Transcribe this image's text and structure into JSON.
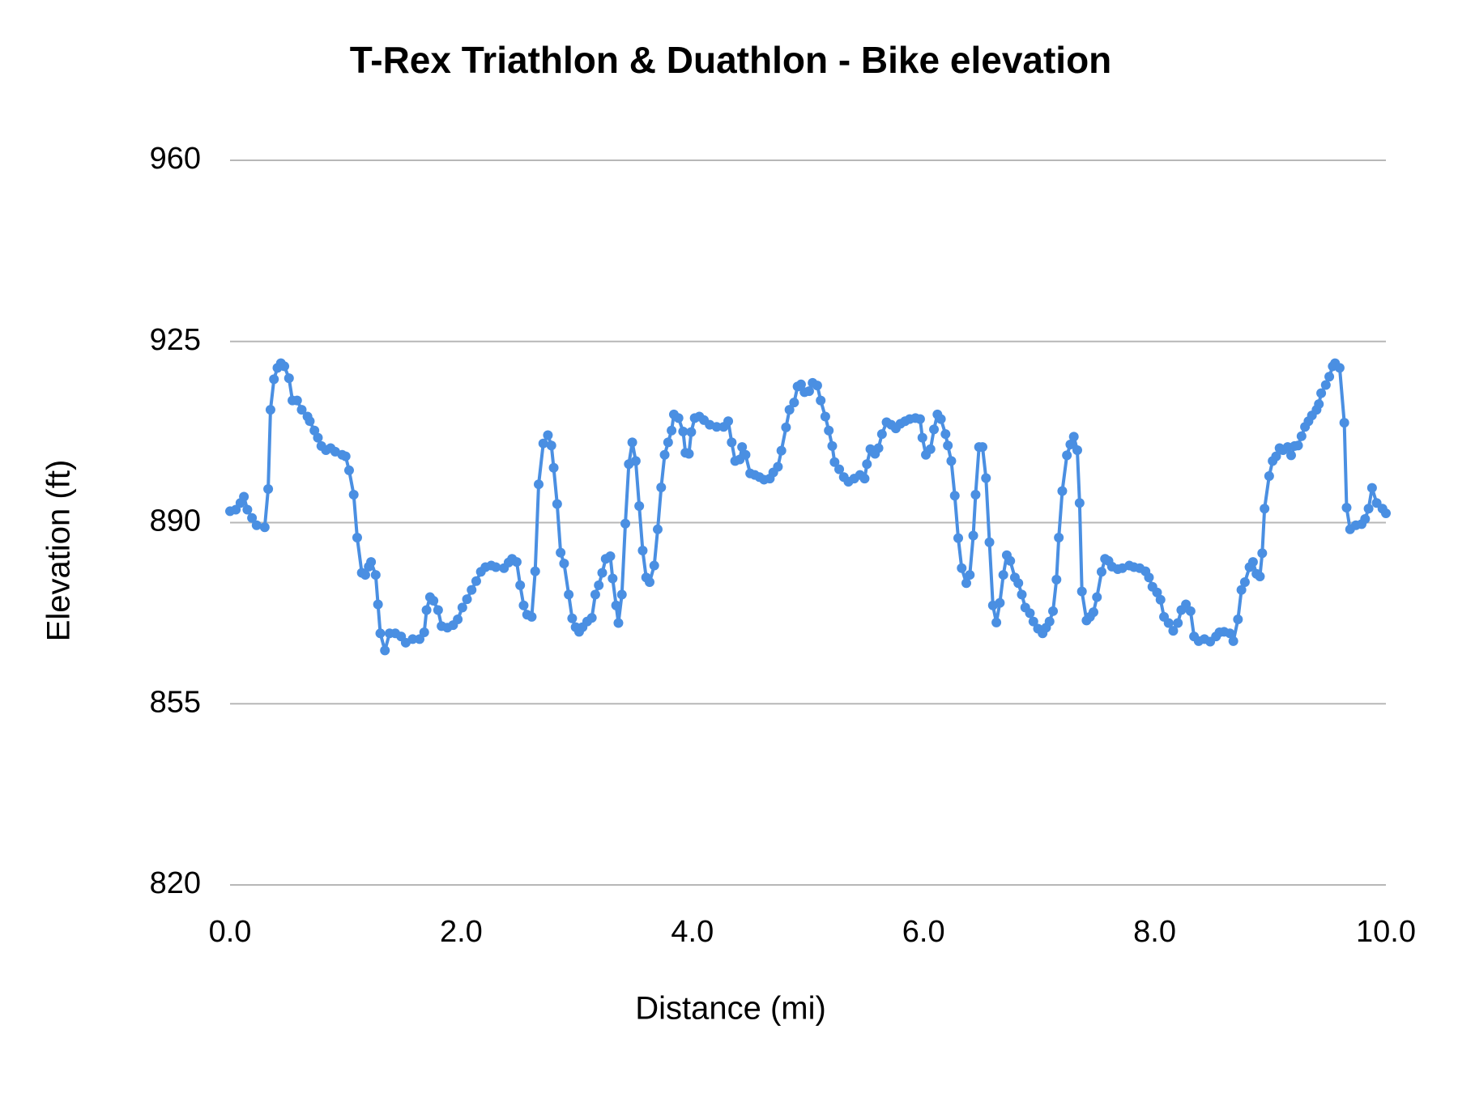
{
  "chart_data": {
    "type": "line",
    "title": "T-Rex Triathlon & Duathlon - Bike elevation",
    "x_label": "Distance (mi)",
    "y_label": "Elevation (ft)",
    "color": "#4a8fe2",
    "grid": true,
    "xlim": [
      0,
      10
    ],
    "ylim": [
      820,
      960
    ],
    "xticks": [
      {
        "value": 0,
        "label": "0.0"
      },
      {
        "value": 2,
        "label": "2.0"
      },
      {
        "value": 4,
        "label": "4.0"
      },
      {
        "value": 6,
        "label": "6.0"
      },
      {
        "value": 8,
        "label": "8.0"
      },
      {
        "value": 10,
        "label": "10.0"
      }
    ],
    "yticks": [
      820,
      855,
      890,
      925,
      960
    ],
    "x": [
      0.0,
      0.05,
      0.09,
      0.12,
      0.15,
      0.19,
      0.23,
      0.3,
      0.33,
      0.35,
      0.38,
      0.41,
      0.44,
      0.47,
      0.51,
      0.54,
      0.58,
      0.62,
      0.67,
      0.69,
      0.73,
      0.76,
      0.79,
      0.83,
      0.87,
      0.91,
      0.97,
      1.0,
      1.03,
      1.07,
      1.1,
      1.14,
      1.17,
      1.2,
      1.22,
      1.26,
      1.28,
      1.3,
      1.34,
      1.38,
      1.43,
      1.48,
      1.52,
      1.58,
      1.64,
      1.68,
      1.7,
      1.73,
      1.76,
      1.8,
      1.83,
      1.88,
      1.93,
      1.97,
      2.01,
      2.05,
      2.09,
      2.13,
      2.17,
      2.21,
      2.26,
      2.3,
      2.37,
      2.41,
      2.44,
      2.48,
      2.51,
      2.54,
      2.57,
      2.61,
      2.64,
      2.67,
      2.71,
      2.75,
      2.78,
      2.8,
      2.83,
      2.86,
      2.89,
      2.93,
      2.96,
      2.99,
      3.02,
      3.05,
      3.09,
      3.13,
      3.16,
      3.19,
      3.22,
      3.25,
      3.29,
      3.31,
      3.34,
      3.36,
      3.39,
      3.42,
      3.45,
      3.48,
      3.51,
      3.54,
      3.57,
      3.6,
      3.63,
      3.67,
      3.7,
      3.73,
      3.76,
      3.79,
      3.82,
      3.84,
      3.88,
      3.92,
      3.94,
      3.97,
      3.99,
      4.02,
      4.06,
      4.1,
      4.15,
      4.21,
      4.27,
      4.31,
      4.34,
      4.37,
      4.41,
      4.43,
      4.46,
      4.5,
      4.54,
      4.58,
      4.62,
      4.67,
      4.7,
      4.74,
      4.77,
      4.81,
      4.84,
      4.88,
      4.91,
      4.94,
      4.97,
      5.01,
      5.04,
      5.08,
      5.11,
      5.15,
      5.18,
      5.21,
      5.23,
      5.27,
      5.31,
      5.35,
      5.4,
      5.45,
      5.49,
      5.51,
      5.54,
      5.58,
      5.61,
      5.64,
      5.68,
      5.72,
      5.76,
      5.8,
      5.84,
      5.88,
      5.93,
      5.97,
      5.99,
      6.02,
      6.06,
      6.09,
      6.12,
      6.15,
      6.19,
      6.21,
      6.24,
      6.27,
      6.3,
      6.33,
      6.37,
      6.4,
      6.43,
      6.45,
      6.48,
      6.51,
      6.54,
      6.57,
      6.6,
      6.63,
      6.66,
      6.69,
      6.72,
      6.75,
      6.79,
      6.82,
      6.85,
      6.88,
      6.92,
      6.95,
      6.99,
      7.03,
      7.06,
      7.09,
      7.12,
      7.15,
      7.17,
      7.2,
      7.24,
      7.27,
      7.3,
      7.33,
      7.35,
      7.37,
      7.41,
      7.44,
      7.47,
      7.5,
      7.54,
      7.57,
      7.6,
      7.63,
      7.68,
      7.72,
      7.78,
      7.82,
      7.87,
      7.92,
      7.95,
      7.98,
      8.02,
      8.05,
      8.08,
      8.12,
      8.16,
      8.2,
      8.23,
      8.27,
      8.31,
      8.34,
      8.38,
      8.43,
      8.48,
      8.53,
      8.56,
      8.6,
      8.65,
      8.68,
      8.72,
      8.75,
      8.78,
      8.82,
      8.85,
      8.88,
      8.91,
      8.93,
      8.95,
      8.99,
      9.02,
      9.05,
      9.08,
      9.11,
      9.15,
      9.18,
      9.21,
      9.24,
      9.27,
      9.3,
      9.33,
      9.36,
      9.4,
      9.42,
      9.44,
      9.48,
      9.51,
      9.54,
      9.56,
      9.6,
      9.64,
      9.66,
      9.69,
      9.74,
      9.79,
      9.82,
      9.85,
      9.88,
      9.92,
      9.97,
      10.0
    ],
    "values": [
      892.2,
      892.5,
      893.8,
      895.0,
      892.5,
      890.9,
      889.5,
      889.1,
      896.5,
      911.8,
      917.7,
      919.9,
      920.8,
      920.2,
      917.9,
      913.6,
      913.6,
      911.8,
      910.5,
      909.6,
      907.8,
      906.4,
      904.8,
      904.0,
      904.4,
      903.7,
      903.1,
      902.8,
      900.1,
      895.4,
      887.1,
      880.3,
      879.9,
      881.5,
      882.4,
      879.9,
      874.2,
      868.6,
      865.3,
      868.6,
      868.6,
      868.0,
      866.8,
      867.5,
      867.5,
      868.8,
      873.1,
      875.6,
      874.9,
      873.1,
      870.0,
      869.7,
      870.2,
      871.3,
      873.6,
      875.2,
      877.0,
      878.7,
      880.5,
      881.4,
      881.7,
      881.4,
      881.2,
      882.3,
      883.0,
      882.4,
      877.9,
      874.0,
      872.2,
      871.8,
      880.6,
      897.4,
      905.3,
      906.9,
      904.9,
      900.6,
      893.6,
      884.2,
      882.1,
      876.1,
      871.5,
      869.8,
      868.9,
      869.8,
      870.9,
      871.6,
      876.1,
      877.9,
      880.3,
      883.0,
      883.5,
      879.2,
      874.0,
      870.6,
      876.1,
      889.8,
      901.3,
      905.5,
      901.9,
      893.2,
      884.6,
      879.4,
      878.5,
      881.7,
      888.7,
      896.8,
      903.1,
      905.5,
      907.8,
      910.9,
      910.2,
      907.6,
      903.5,
      903.3,
      907.5,
      910.2,
      910.5,
      909.8,
      908.9,
      908.5,
      908.5,
      909.6,
      905.5,
      901.9,
      902.2,
      904.6,
      903.1,
      899.5,
      899.2,
      898.8,
      898.3,
      898.5,
      899.7,
      900.8,
      903.9,
      908.4,
      911.8,
      913.2,
      916.3,
      916.7,
      915.2,
      915.4,
      917.0,
      916.5,
      913.6,
      910.5,
      907.8,
      904.8,
      901.7,
      900.3,
      898.8,
      897.9,
      898.5,
      899.2,
      898.5,
      901.3,
      904.2,
      903.3,
      904.4,
      907.1,
      909.4,
      908.9,
      908.2,
      909.1,
      909.6,
      910.0,
      910.2,
      910.0,
      906.4,
      903.1,
      904.2,
      908.0,
      910.9,
      910.0,
      907.1,
      904.9,
      901.9,
      895.2,
      887.0,
      881.2,
      878.3,
      879.9,
      887.5,
      895.4,
      904.6,
      904.6,
      898.6,
      886.2,
      874.0,
      870.7,
      874.5,
      879.9,
      883.7,
      882.6,
      879.4,
      878.3,
      876.1,
      873.6,
      872.5,
      870.9,
      869.5,
      868.6,
      869.7,
      870.9,
      872.9,
      879.0,
      887.1,
      896.1,
      903.0,
      905.1,
      906.6,
      904.0,
      893.8,
      876.7,
      871.1,
      871.8,
      872.7,
      875.6,
      880.5,
      883.0,
      882.6,
      881.5,
      881.0,
      881.2,
      881.7,
      881.4,
      881.2,
      880.6,
      879.4,
      877.6,
      876.5,
      875.1,
      871.8,
      870.6,
      869.1,
      870.6,
      873.1,
      874.2,
      872.9,
      868.0,
      867.1,
      867.5,
      867.0,
      868.0,
      868.8,
      868.9,
      868.6,
      867.1,
      871.3,
      877.0,
      878.5,
      881.4,
      882.4,
      880.1,
      879.6,
      884.1,
      892.7,
      899.0,
      901.9,
      902.8,
      904.4,
      904.0,
      904.6,
      903.0,
      904.8,
      904.9,
      906.7,
      908.5,
      909.6,
      910.7,
      911.8,
      912.9,
      915.0,
      916.6,
      918.2,
      920.2,
      920.8,
      919.9,
      909.3,
      892.9,
      888.7,
      889.5,
      889.7,
      890.7,
      892.7,
      896.7,
      893.8,
      892.7,
      891.8
    ]
  }
}
